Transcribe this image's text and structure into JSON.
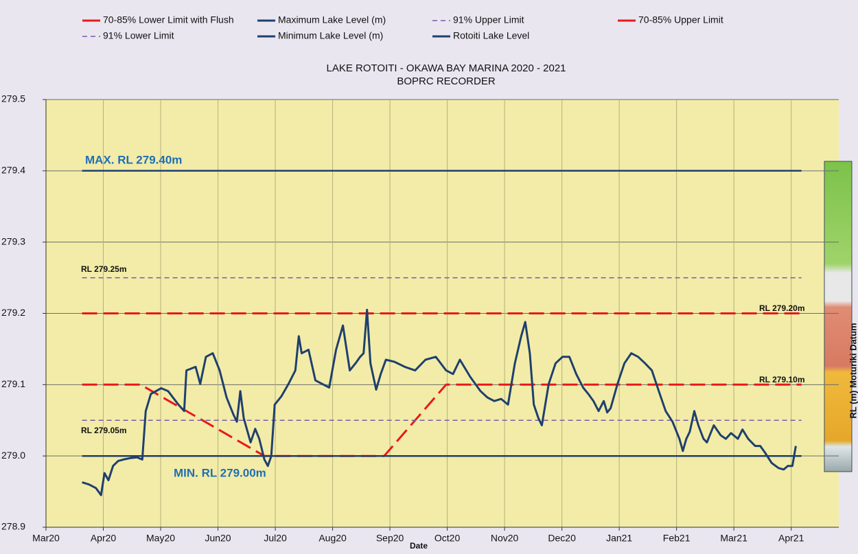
{
  "chart_data": {
    "type": "line",
    "title": "LAKE ROTOITI - OKAWA BAY MARINA 2020 - 2021",
    "subtitle": "BOPRC RECORDER",
    "x_label": "Date",
    "y2_label": "RL (m) Moturiki Datum",
    "xlim": [
      0,
      13.83
    ],
    "ylim": [
      278.9,
      279.5
    ],
    "xticks": [
      {
        "value": 0,
        "label": "Mar20"
      },
      {
        "value": 1,
        "label": "Apr20"
      },
      {
        "value": 2,
        "label": "May20"
      },
      {
        "value": 3,
        "label": "Jun20"
      },
      {
        "value": 4,
        "label": "Jul20"
      },
      {
        "value": 5,
        "label": "Aug20"
      },
      {
        "value": 6,
        "label": "Sep20"
      },
      {
        "value": 7,
        "label": "Oct20"
      },
      {
        "value": 8,
        "label": "Nov20"
      },
      {
        "value": 9,
        "label": "Dec20"
      },
      {
        "value": 10,
        "label": "Jan21"
      },
      {
        "value": 11,
        "label": "Feb21"
      },
      {
        "value": 12,
        "label": "Mar21"
      },
      {
        "value": 13,
        "label": "Apr21"
      }
    ],
    "yticks": [
      {
        "value": 278.9,
        "label": "278.9"
      },
      {
        "value": 279,
        "label": "279.0"
      },
      279.1,
      279.2,
      279.3,
      279.4,
      279.5
    ],
    "grid": true,
    "legend": "top",
    "annotations": [
      "MAX. RL 279.40m",
      "MIN. RL 279.00m",
      "RL 279.25m",
      "RL 279.20m",
      "RL 279.10m",
      "RL 279.05m"
    ],
    "series": [
      {
        "name": "70-85% Lower Limit with Flush",
        "color": "#e8181b",
        "line_style": "long-dash",
        "x": [
          0.63,
          1.65,
          3.81,
          5.9,
          6.98,
          13.18
        ],
        "values": [
          279.1,
          279.1,
          279.0,
          279.0,
          279.1,
          279.1
        ]
      },
      {
        "name": "Maximum Lake Level (m)",
        "color": "#1f3f6e",
        "line_style": "solid",
        "x": [
          0.63,
          13.18
        ],
        "values": [
          279.4,
          279.4
        ]
      },
      {
        "name": "91% Upper Limit",
        "color": "#7a58a8",
        "line_style": "short-dash",
        "x": [
          0.63,
          13.18
        ],
        "values": [
          279.25,
          279.25
        ]
      },
      {
        "name": "70-85% Upper Limit",
        "color": "#e8181b",
        "line_style": "long-dash",
        "x": [
          0.63,
          13.18
        ],
        "values": [
          279.2,
          279.2
        ]
      },
      {
        "name": "91% Lower Limit",
        "color": "#7a58a8",
        "line_style": "short-dash",
        "x": [
          0.63,
          13.18
        ],
        "values": [
          279.05,
          279.05
        ]
      },
      {
        "name": "Minimum Lake Level (m)",
        "color": "#1f3f6e",
        "line_style": "solid",
        "x": [
          0.63,
          13.18
        ],
        "values": [
          279.0,
          279.0
        ]
      },
      {
        "name": "Rotoiti Lake Level",
        "color": "#1f3f6e",
        "line_style": "solid",
        "x": [
          0.63,
          0.75,
          0.87,
          0.96,
          1.02,
          1.09,
          1.17,
          1.26,
          1.35,
          1.47,
          1.59,
          1.68,
          1.74,
          1.83,
          2.01,
          2.13,
          2.31,
          2.41,
          2.45,
          2.61,
          2.69,
          2.79,
          2.91,
          3.03,
          3.15,
          3.27,
          3.33,
          3.39,
          3.45,
          3.57,
          3.65,
          3.72,
          3.81,
          3.87,
          3.93,
          3.99,
          4.11,
          4.23,
          4.35,
          4.41,
          4.46,
          4.58,
          4.7,
          4.82,
          4.94,
          5.06,
          5.18,
          5.3,
          5.4,
          5.48,
          5.54,
          5.6,
          5.66,
          5.76,
          5.84,
          5.93,
          6.08,
          6.26,
          6.44,
          6.62,
          6.8,
          6.98,
          7.1,
          7.22,
          7.4,
          7.58,
          7.7,
          7.82,
          7.94,
          8.06,
          8.12,
          8.18,
          8.29,
          8.36,
          8.44,
          8.51,
          8.59,
          8.65,
          8.77,
          8.89,
          9.01,
          9.13,
          9.25,
          9.37,
          9.46,
          9.55,
          9.64,
          9.73,
          9.79,
          9.85,
          9.97,
          10.09,
          10.21,
          10.33,
          10.45,
          10.57,
          10.69,
          10.81,
          10.93,
          11.05,
          11.11,
          11.17,
          11.23,
          11.31,
          11.38,
          11.47,
          11.53,
          11.65,
          11.77,
          11.86,
          11.95,
          12.07,
          12.15,
          12.25,
          12.37,
          12.46,
          12.54,
          12.66,
          12.78,
          12.87,
          12.94,
          13.02,
          13.08
        ],
        "values": [
          278.963,
          278.96,
          278.955,
          278.945,
          278.976,
          278.966,
          278.986,
          278.993,
          278.995,
          278.997,
          278.998,
          278.995,
          279.063,
          279.087,
          279.095,
          279.091,
          279.072,
          279.063,
          279.12,
          279.125,
          279.101,
          279.139,
          279.144,
          279.12,
          279.082,
          279.058,
          279.048,
          279.091,
          279.053,
          279.019,
          279.038,
          279.024,
          278.995,
          278.986,
          279.0,
          279.072,
          279.084,
          279.101,
          279.12,
          279.168,
          279.144,
          279.149,
          279.106,
          279.101,
          279.096,
          279.149,
          279.183,
          279.12,
          279.13,
          279.139,
          279.144,
          279.205,
          279.13,
          279.093,
          279.115,
          279.135,
          279.132,
          279.125,
          279.12,
          279.135,
          279.139,
          279.12,
          279.115,
          279.135,
          279.111,
          279.091,
          279.082,
          279.077,
          279.08,
          279.072,
          279.101,
          279.13,
          279.168,
          279.188,
          279.144,
          279.072,
          279.053,
          279.043,
          279.101,
          279.13,
          279.139,
          279.139,
          279.115,
          279.096,
          279.087,
          279.077,
          279.063,
          279.077,
          279.061,
          279.067,
          279.101,
          279.13,
          279.144,
          279.139,
          279.13,
          279.12,
          279.091,
          279.063,
          279.048,
          279.024,
          279.007,
          279.024,
          279.034,
          279.063,
          279.043,
          279.024,
          279.019,
          279.043,
          279.029,
          279.024,
          279.032,
          279.024,
          279.037,
          279.024,
          279.014,
          279.014,
          279.005,
          278.99,
          278.983,
          278.981,
          278.986,
          278.986,
          279.014
        ]
      }
    ]
  }
}
